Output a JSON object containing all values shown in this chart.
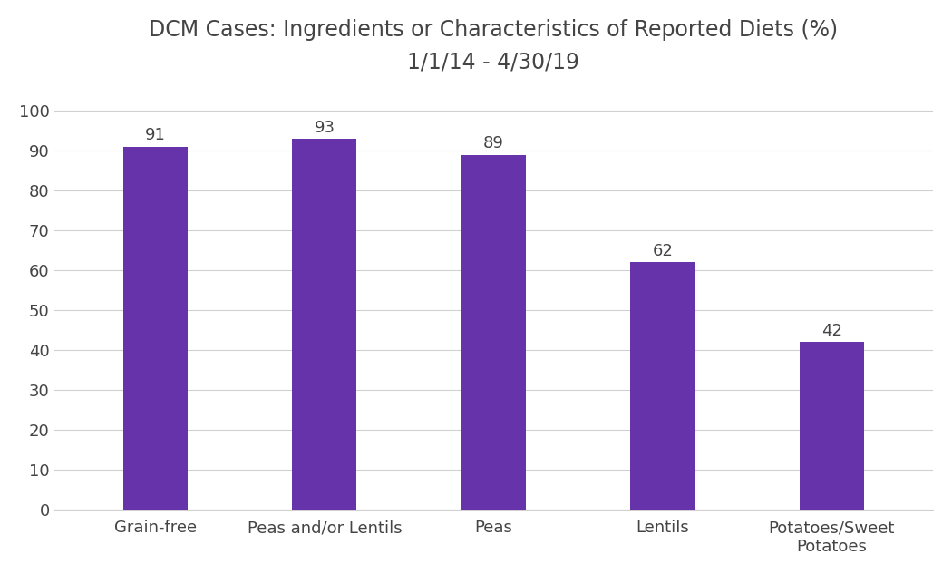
{
  "title_line1": "DCM Cases: Ingredients or Characteristics of Reported Diets (%)",
  "title_line2": "1/1/14 - 4/30/19",
  "categories": [
    "Grain-free",
    "Peas and/or Lentils",
    "Peas",
    "Lentils",
    "Potatoes/Sweet\nPotatoes"
  ],
  "values": [
    91,
    93,
    89,
    62,
    42
  ],
  "bar_color": "#6633AA",
  "ylim": [
    0,
    105
  ],
  "yticks": [
    0,
    10,
    20,
    30,
    40,
    50,
    60,
    70,
    80,
    90,
    100
  ],
  "title_fontsize": 17,
  "tick_fontsize": 13,
  "label_fontsize": 13,
  "background_color": "#ffffff",
  "grid_color": "#d0d0d0",
  "bar_width": 0.38
}
